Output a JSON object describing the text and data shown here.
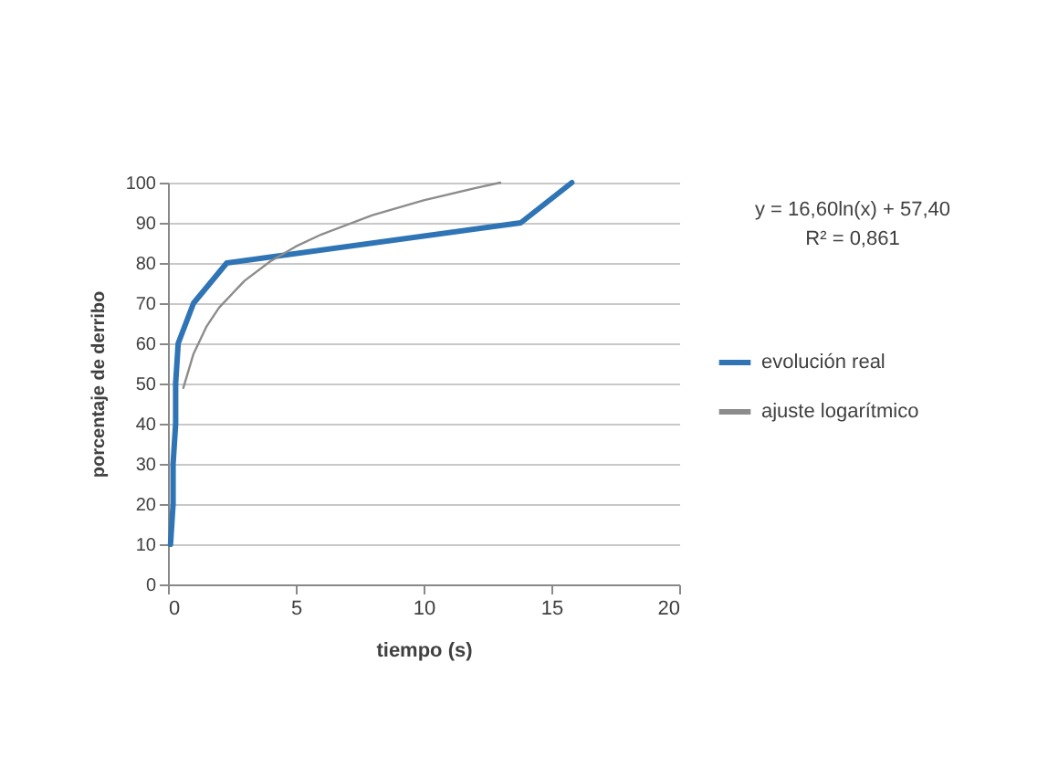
{
  "chart_data": {
    "type": "line",
    "xlabel": "tiempo (s)",
    "ylabel": "porcentaje de derribo",
    "xlim": [
      0,
      20
    ],
    "xticks": [
      0,
      5,
      10,
      15,
      20
    ],
    "ylim": [
      0,
      100
    ],
    "yticks": [
      0,
      10,
      20,
      30,
      40,
      50,
      60,
      70,
      80,
      90,
      100
    ],
    "grid": "y",
    "legend": "right",
    "annotations": [
      "y = 16,60ln(x) + 57,40",
      "R² = 0,861"
    ],
    "series": [
      {
        "name": "evolución real",
        "color": "#2f74b5",
        "x": [
          0.1,
          0.2,
          0.2,
          0.3,
          0.3,
          0.4,
          1.0,
          2.3,
          13.8,
          15.8
        ],
        "values": [
          10,
          20,
          30,
          40,
          50,
          60,
          70,
          80,
          90,
          100
        ]
      },
      {
        "name": "ajuste logarítmico",
        "color": "#8c8c8c",
        "x": [
          0.6,
          1,
          1.5,
          2,
          3,
          4,
          5,
          6,
          8,
          10,
          12,
          13
        ],
        "values": [
          48.9,
          57.4,
          64.1,
          68.9,
          75.6,
          80.4,
          84.1,
          87.1,
          91.9,
          95.6,
          98.6,
          100.0
        ]
      }
    ]
  }
}
